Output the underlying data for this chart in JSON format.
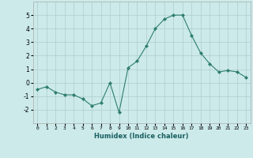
{
  "xlabel": "Humidex (Indice chaleur)",
  "x": [
    0,
    1,
    2,
    3,
    4,
    5,
    6,
    7,
    8,
    9,
    10,
    11,
    12,
    13,
    14,
    15,
    16,
    17,
    18,
    19,
    20,
    21,
    22,
    23
  ],
  "y": [
    -0.5,
    -0.3,
    -0.7,
    -0.9,
    -0.9,
    -1.2,
    -1.7,
    -1.5,
    0.0,
    -2.2,
    1.1,
    1.6,
    2.7,
    4.0,
    4.7,
    5.0,
    5.0,
    3.5,
    2.2,
    1.4,
    0.8,
    0.9,
    0.8,
    0.4
  ],
  "line_color": "#2e7d6e",
  "marker": "D",
  "marker_size": 2.0,
  "background_color": "#cceaea",
  "grid_color": "#b0cccc",
  "ylim": [
    -3,
    6
  ],
  "yticks": [
    -2,
    -1,
    0,
    1,
    2,
    3,
    4,
    5
  ],
  "xlim": [
    -0.5,
    23.5
  ],
  "xticks": [
    0,
    1,
    2,
    3,
    4,
    5,
    6,
    7,
    8,
    9,
    10,
    11,
    12,
    13,
    14,
    15,
    16,
    17,
    18,
    19,
    20,
    21,
    22,
    23
  ]
}
